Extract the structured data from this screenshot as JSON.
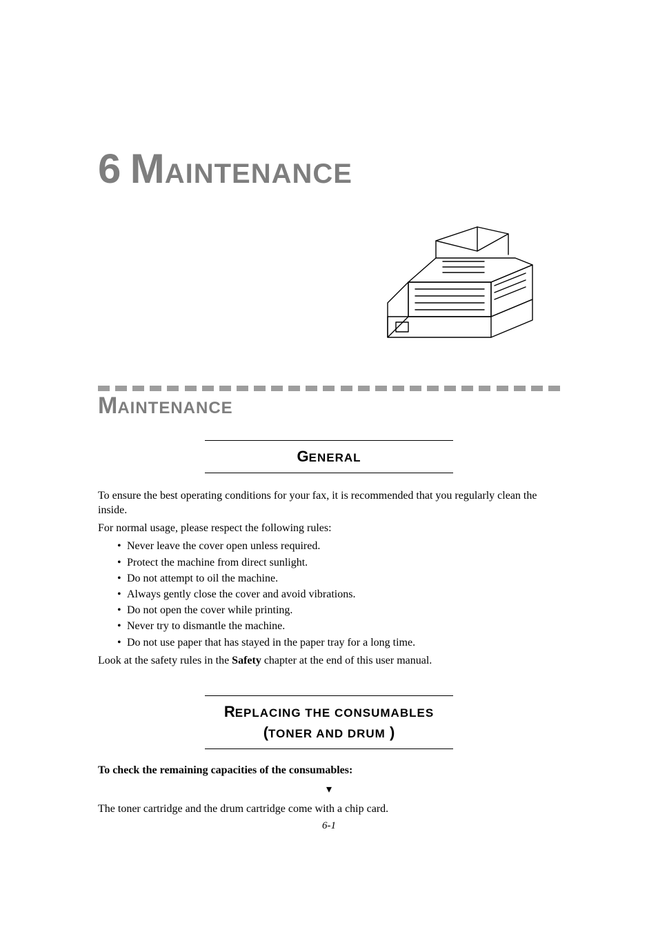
{
  "colors": {
    "accent_gray": "#7e7e7e",
    "dash_gray": "#9d9d9d",
    "text": "#000000",
    "background": "#ffffff"
  },
  "typography": {
    "heading_font": "Comic Sans MS",
    "body_font": "Times New Roman",
    "chapter_num_size_pt": 60,
    "chapter_rest_size_pt": 40,
    "section_big_size_pt": 34,
    "section_rest_size_pt": 24,
    "sub_big_size_pt": 22,
    "sub_rest_size_pt": 17,
    "body_size_pt": 16
  },
  "chapter": {
    "number": "6",
    "big_letter": "M",
    "rest": "AINTENANCE"
  },
  "dash_count": 27,
  "section": {
    "big_letter": "M",
    "rest": "AINTENANCE"
  },
  "subsection_general": {
    "big_letter": "G",
    "rest": "ENERAL"
  },
  "general": {
    "intro": "To ensure the best operating conditions for your fax, it is recommended that you regularly clean the inside.",
    "rules_intro": "For normal usage, please respect the following rules:",
    "rules": [
      "Never leave the cover open unless required.",
      "Protect the machine from direct sunlight.",
      "Do not attempt to oil the machine.",
      "Always gently close the cover and avoid vibrations.",
      "Do not open the cover while printing.",
      "Never try to dismantle the machine.",
      "Do not use paper that has stayed in the paper tray for a long time."
    ],
    "safety_pre": "Look at the safety rules in the ",
    "safety_bold": "Safety",
    "safety_post": " chapter at the end of this user manual."
  },
  "subsection_replacing": {
    "line1_big": "R",
    "line1_rest": "EPLACING THE CONSUMABLES",
    "line2_open": "(",
    "line2_rest1": "TONER AND DRUM",
    "line2_close": " )"
  },
  "replacing": {
    "check_line": "To check the remaining capacities of the consumables:",
    "arrow_glyph": "▾",
    "body": "The toner cartridge and the drum cartridge come with a chip card."
  },
  "footer": {
    "page_num": "6-1"
  }
}
